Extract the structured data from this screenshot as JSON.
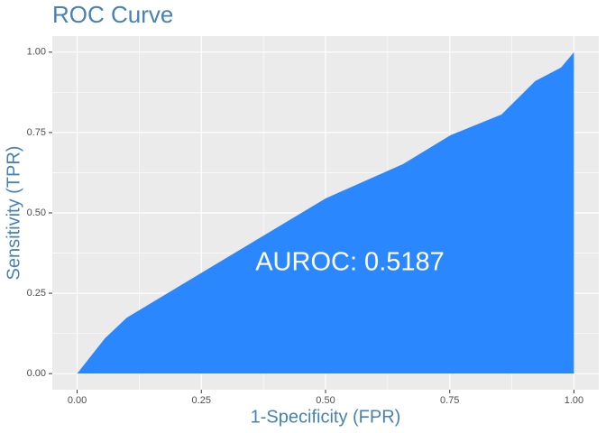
{
  "chart_data": {
    "type": "area",
    "title": "ROC Curve",
    "x_label": "1-Specificity (FPR)",
    "y_label": "Sensitivity (TPR)",
    "annotation": "AUROC: 0.5187",
    "x": [
      0,
      0.056,
      0.1,
      0.5,
      0.656,
      0.752,
      0.854,
      0.922,
      0.974,
      1
    ],
    "values": [
      0,
      0.11,
      0.174,
      0.545,
      0.652,
      0.742,
      0.806,
      0.91,
      0.952,
      1
    ],
    "color": "#2b87fe",
    "xlim": [
      -0.05,
      1.05
    ],
    "ylim": [
      -0.05,
      1.05
    ],
    "xticks": [
      {
        "value": 0,
        "label": "0.00"
      },
      {
        "value": 0.25,
        "label": "0.25"
      },
      {
        "value": 0.5,
        "label": "0.50"
      },
      {
        "value": 0.75,
        "label": "0.75"
      },
      {
        "value": 1,
        "label": "1.00"
      }
    ],
    "yticks": [
      {
        "value": 0,
        "label": "0.00"
      },
      {
        "value": 0.25,
        "label": "0.25"
      },
      {
        "value": 0.5,
        "label": "0.50"
      },
      {
        "value": 0.75,
        "label": "0.75"
      },
      {
        "value": 1,
        "label": "1.00"
      }
    ],
    "grid": true,
    "minor_grid": true
  }
}
